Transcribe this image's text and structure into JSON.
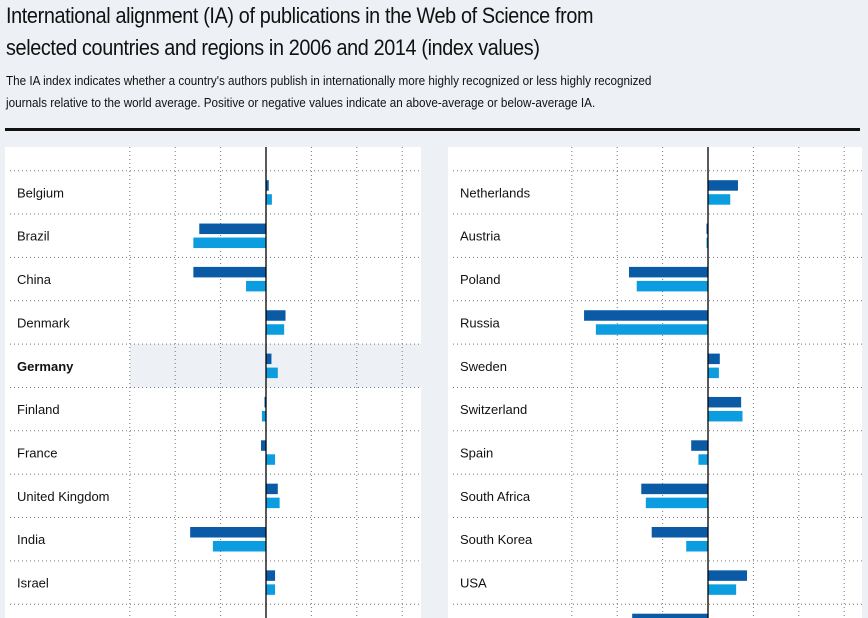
{
  "header": {
    "title_line1": "International alignment (IA) of publications in the Web of Science from",
    "title_line2": "selected countries and regions in 2006 and 2014 (index values)",
    "subtitle_line1": "The IA index indicates whether a country's authors publish in internationally more highly recognized or less highly recognized",
    "subtitle_line2": "journals relative to the world average. Positive or negative values indicate an above-average or below-average IA."
  },
  "colors": {
    "series_2006": "#0a5aa6",
    "series_2014": "#0b9de0",
    "highlight": "#edf1f5"
  },
  "chart_data": [
    {
      "type": "bar",
      "orientation": "horizontal",
      "title": "",
      "xlim": [
        -30,
        35
      ],
      "grid": true,
      "highlight": "Germany",
      "categories": [
        "Belgium",
        "Brazil",
        "China",
        "Denmark",
        "Germany",
        "Finland",
        "France",
        "United Kingdom",
        "India",
        "Israel"
      ],
      "series": [
        {
          "name": "2006",
          "values": [
            0.6,
            -14.7,
            -16.0,
            4.3,
            1.2,
            -0.2,
            -1.1,
            2.6,
            -16.7,
            2.0
          ]
        },
        {
          "name": "2014",
          "values": [
            1.3,
            -16.0,
            -4.4,
            4.0,
            2.6,
            -0.9,
            2.0,
            3.0,
            -11.7,
            2.0
          ]
        }
      ]
    },
    {
      "type": "bar",
      "orientation": "horizontal",
      "title": "",
      "xlim": [
        -30,
        35
      ],
      "grid": true,
      "categories": [
        "Netherlands",
        "Austria",
        "Poland",
        "Russia",
        "Sweden",
        "Switzerland",
        "Spain",
        "South Africa",
        "South Korea",
        "USA",
        ""
      ],
      "series": [
        {
          "name": "2006",
          "values": [
            6.6,
            -0.2,
            -17.4,
            -27.3,
            2.6,
            7.3,
            -3.7,
            -14.7,
            -12.4,
            8.6,
            -16.7
          ]
        },
        {
          "name": "2014",
          "values": [
            4.9,
            -0.1,
            -15.7,
            -24.7,
            2.4,
            7.6,
            -2.1,
            -13.7,
            -4.8,
            6.2,
            null
          ]
        }
      ]
    }
  ]
}
